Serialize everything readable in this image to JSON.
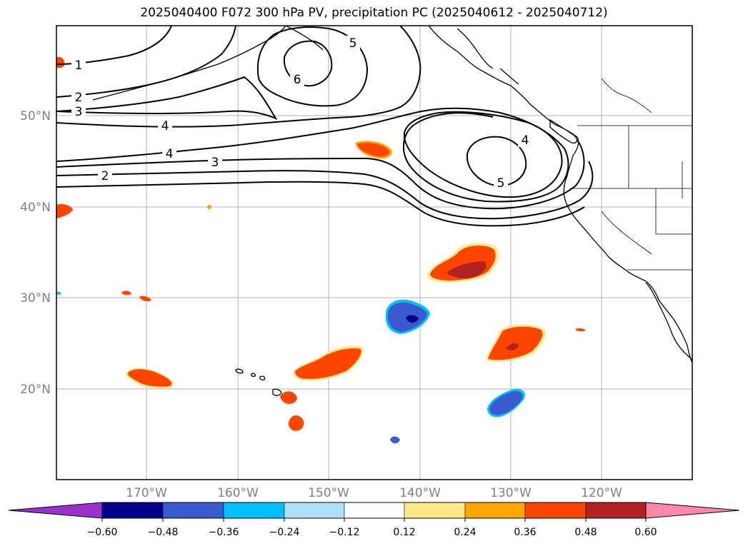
{
  "title": "2025040400 F072 300 hPa PV, precipitation PC (2025040612 - 2025040712)",
  "lat_labels": [
    "50°N",
    "40°N",
    "30°N",
    "20°N"
  ],
  "lon_labels": [
    "170°W",
    "160°W",
    "150°W",
    "140°W",
    "130°W",
    "120°W"
  ],
  "contour_labels": [
    "1",
    "2",
    "3",
    "4",
    "4",
    "3",
    "2",
    "5",
    "6",
    "4",
    "5"
  ],
  "colorbar": {
    "ticks": [
      "−0.60",
      "−0.48",
      "−0.36",
      "−0.24",
      "−0.12",
      "0.12",
      "0.24",
      "0.36",
      "0.48",
      "0.60"
    ],
    "colors": [
      "#9932cc",
      "#00008b",
      "#3a5bcf",
      "#00bfff",
      "#aee0f8",
      "#ffffff",
      "#ffe88a",
      "#ffa500",
      "#ff4500",
      "#b22222",
      "#ff88aa"
    ]
  }
}
